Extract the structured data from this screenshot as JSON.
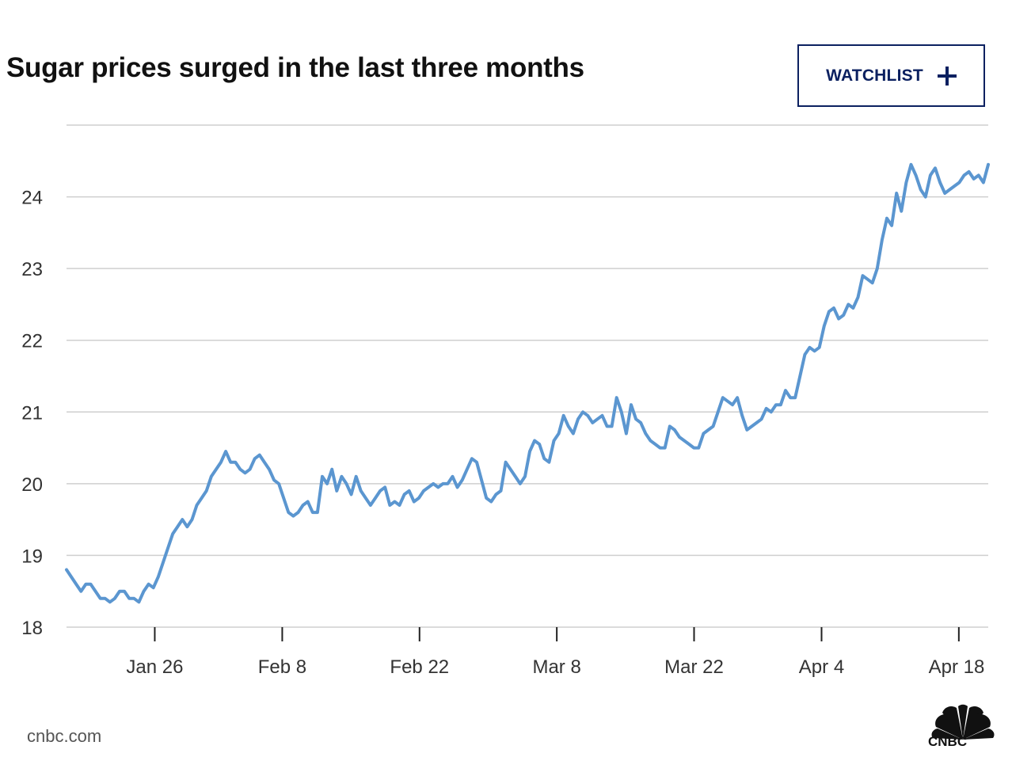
{
  "header": {
    "title": "Sugar prices surged in the last three months",
    "watchlist_label": "WATCHLIST",
    "watchlist_icon": "plus-icon"
  },
  "footer": {
    "source": "cnbc.com",
    "logo_text": "CNBC",
    "logo_icon": "peacock-icon"
  },
  "colors": {
    "line": "#5b96d0",
    "accent": "#0b2060"
  },
  "chart_data": {
    "type": "line",
    "title": "Sugar prices surged in the last three months",
    "xlabel": "",
    "ylabel": "",
    "x_start": "Jan 17",
    "x_end": "Apr 21",
    "ylim": [
      18,
      25.0
    ],
    "yticks": [
      18,
      19,
      20,
      21,
      22,
      23,
      24
    ],
    "xticks": [
      {
        "label": "Jan 26",
        "date": "Jan 26"
      },
      {
        "label": "Feb 8",
        "date": "Feb 8"
      },
      {
        "label": "Feb 22",
        "date": "Feb 22"
      },
      {
        "label": "Mar 8",
        "date": "Mar 8"
      },
      {
        "label": "Mar 22",
        "date": "Mar 22"
      },
      {
        "label": "Apr 4",
        "date": "Apr 4"
      },
      {
        "label": "Apr 18",
        "date": "Apr 18"
      }
    ],
    "grid": true,
    "legend": "none",
    "series": [
      {
        "values": [
          18.8,
          18.7,
          18.6,
          18.5,
          18.6,
          18.6,
          18.5,
          18.4,
          18.4,
          18.35,
          18.4,
          18.5,
          18.5,
          18.4,
          18.4,
          18.35,
          18.5,
          18.6,
          18.55,
          18.7,
          18.9,
          19.1,
          19.3,
          19.4,
          19.5,
          19.4,
          19.5,
          19.7,
          19.8,
          19.9,
          20.1,
          20.2,
          20.3,
          20.45,
          20.3,
          20.3,
          20.2,
          20.15,
          20.2,
          20.35,
          20.4,
          20.3,
          20.2,
          20.05,
          20.0,
          19.8,
          19.6,
          19.55,
          19.6,
          19.7,
          19.75,
          19.6,
          19.6,
          20.1,
          20.0,
          20.2,
          19.9,
          20.1,
          20.0,
          19.85,
          20.1,
          19.9,
          19.8,
          19.7,
          19.8,
          19.9,
          19.95,
          19.7,
          19.75,
          19.7,
          19.85,
          19.9,
          19.75,
          19.8,
          19.9,
          19.95,
          20.0,
          19.95,
          20.0,
          20.0,
          20.1,
          19.95,
          20.05,
          20.2,
          20.35,
          20.3,
          20.05,
          19.8,
          19.75,
          19.85,
          19.9,
          20.3,
          20.2,
          20.1,
          20.0,
          20.1,
          20.45,
          20.6,
          20.55,
          20.35,
          20.3,
          20.6,
          20.7,
          20.95,
          20.8,
          20.7,
          20.9,
          21.0,
          20.95,
          20.85,
          20.9,
          20.95,
          20.8,
          20.8,
          21.2,
          21.0,
          20.7,
          21.1,
          20.9,
          20.85,
          20.7,
          20.6,
          20.55,
          20.5,
          20.5,
          20.8,
          20.75,
          20.65,
          20.6,
          20.55,
          20.5,
          20.5,
          20.7,
          20.75,
          20.8,
          21.0,
          21.2,
          21.15,
          21.1,
          21.2,
          20.95,
          20.75,
          20.8,
          20.85,
          20.9,
          21.05,
          21.0,
          21.1,
          21.1,
          21.3,
          21.2,
          21.2,
          21.5,
          21.8,
          21.9,
          21.85,
          21.9,
          22.2,
          22.4,
          22.45,
          22.3,
          22.35,
          22.5,
          22.45,
          22.6,
          22.9,
          22.85,
          22.8,
          23.0,
          23.4,
          23.7,
          23.6,
          24.05,
          23.8,
          24.2,
          24.45,
          24.3,
          24.1,
          24.0,
          24.3,
          24.4,
          24.2,
          24.05,
          24.1,
          24.15,
          24.2,
          24.3,
          24.35,
          24.25,
          24.3,
          24.2,
          24.45
        ]
      }
    ]
  }
}
